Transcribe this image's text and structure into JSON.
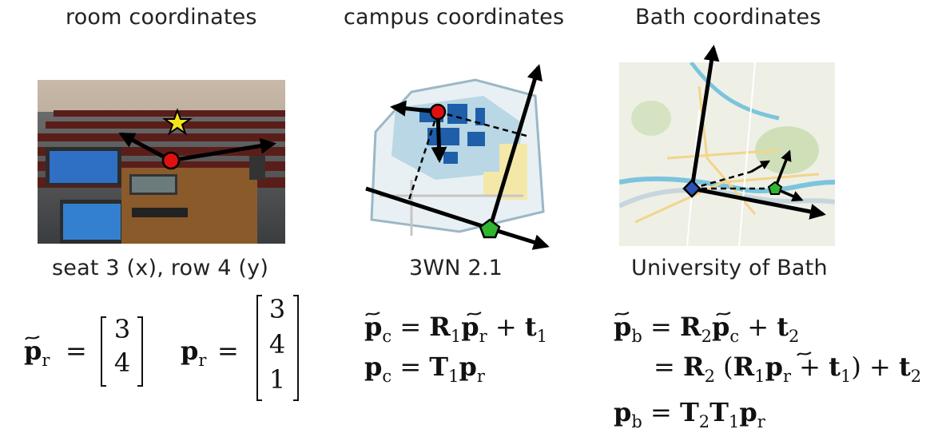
{
  "headings": {
    "room": "room coordinates",
    "campus": "campus coordinates",
    "bath": "Bath coordinates"
  },
  "captions": {
    "room": "seat 3 (x), row 4 (y)",
    "campus": "3WN 2.1",
    "bath": "University of Bath"
  },
  "room_equations": {
    "p_tilde_r_vector": [
      "3",
      "4"
    ],
    "p_r_vector": [
      "3",
      "4",
      "1"
    ]
  },
  "symbols": {
    "p": "p",
    "r": "r",
    "c": "c",
    "b": "b",
    "R": "R",
    "T": "T",
    "t": "t",
    "one": "1",
    "two": "2",
    "eq": "=",
    "plus": "+"
  },
  "colors": {
    "red_marker": "#e11010",
    "yellow_star": "#f5e31a",
    "green_marker": "#2fb62f",
    "blue_marker": "#2a52b8",
    "arrow": "#000000"
  }
}
